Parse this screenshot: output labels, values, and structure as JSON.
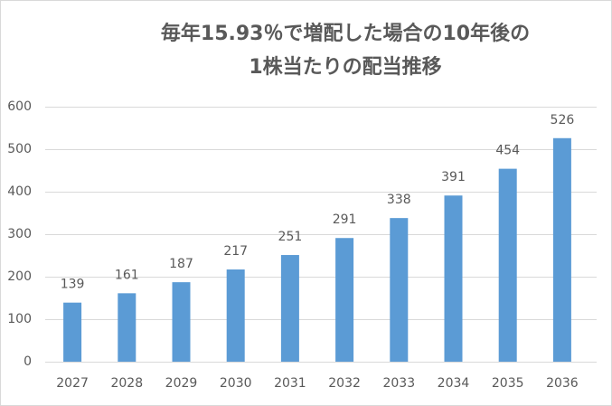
{
  "chart_data": {
    "type": "bar",
    "title": [
      "毎年15.93％で増配した場合の10年後の",
      "1株当たりの配当推移"
    ],
    "categories": [
      "2027",
      "2028",
      "2029",
      "2030",
      "2031",
      "2032",
      "2033",
      "2034",
      "2035",
      "2036"
    ],
    "values": [
      139,
      161,
      187,
      217,
      251,
      291,
      338,
      391,
      454,
      526
    ],
    "color": "#5b9bd5",
    "ylim": [
      0,
      600
    ],
    "yticks": [
      0,
      100,
      200,
      300,
      400,
      500,
      600
    ],
    "grid": true,
    "data_labels": true
  }
}
